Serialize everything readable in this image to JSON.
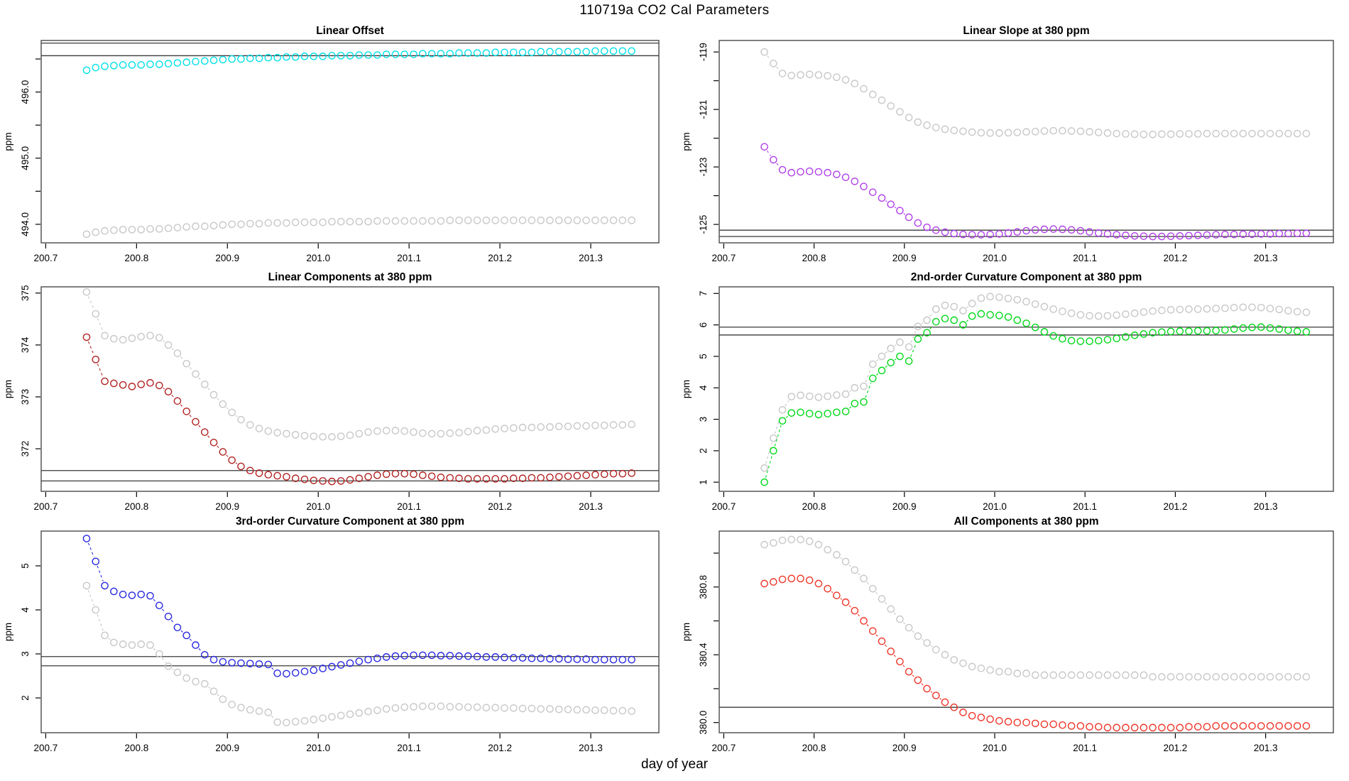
{
  "figure": {
    "title": "110719a   CO2 Cal Parameters",
    "xlabel": "day of year"
  },
  "x_axis": {
    "ticks": [
      200.7,
      200.8,
      200.9,
      201.0,
      201.1,
      201.2,
      201.3
    ],
    "tick_labels": [
      "200.7",
      "200.8",
      "200.9",
      "201.0",
      "201.1",
      "201.2",
      "201.3"
    ]
  },
  "chart_data": [
    {
      "type": "scatter",
      "title": "Linear Offset",
      "ylabel": "ppm",
      "xlim": [
        200.695,
        201.375
      ],
      "ylim": [
        493.72,
        496.78
      ],
      "yticks": [
        494.0,
        494.5,
        495.0,
        495.5,
        496.0,
        496.5
      ],
      "ytick_labels": [
        "494.0",
        "",
        "495.0",
        "",
        "496.0",
        ""
      ],
      "hlines": [
        496.74,
        496.55
      ],
      "series": [
        {
          "name": "offset-gray",
          "color": "#c7c7c7",
          "x_start": 200.745,
          "x_step": 0.01,
          "y": [
            493.85,
            493.88,
            493.9,
            493.91,
            493.92,
            493.92,
            493.92,
            493.93,
            493.93,
            493.94,
            493.95,
            493.96,
            493.97,
            493.97,
            493.98,
            493.99,
            494.0,
            494.0,
            494.01,
            494.01,
            494.02,
            494.02,
            494.02,
            494.03,
            494.03,
            494.03,
            494.03,
            494.04,
            494.04,
            494.04,
            494.04,
            494.04,
            494.05,
            494.05,
            494.05,
            494.05,
            494.05,
            494.05,
            494.05,
            494.05,
            494.06,
            494.06,
            494.06,
            494.06,
            494.06,
            494.06,
            494.06,
            494.06,
            494.06,
            494.06,
            494.06,
            494.06,
            494.06,
            494.06,
            494.06,
            494.06,
            494.06,
            494.06,
            494.06,
            494.06,
            494.06
          ]
        },
        {
          "name": "offset-cyan",
          "color": "#00dfe8",
          "x_start": 200.745,
          "x_step": 0.01,
          "y": [
            496.33,
            496.37,
            496.39,
            496.4,
            496.41,
            496.41,
            496.41,
            496.42,
            496.42,
            496.43,
            496.44,
            496.45,
            496.46,
            496.47,
            496.48,
            496.49,
            496.5,
            496.5,
            496.51,
            496.51,
            496.52,
            496.52,
            496.53,
            496.53,
            496.54,
            496.54,
            496.54,
            496.55,
            496.55,
            496.55,
            496.56,
            496.56,
            496.56,
            496.57,
            496.57,
            496.57,
            496.57,
            496.58,
            496.58,
            496.58,
            496.58,
            496.59,
            496.59,
            496.59,
            496.59,
            496.6,
            496.6,
            496.6,
            496.6,
            496.6,
            496.61,
            496.61,
            496.61,
            496.61,
            496.61,
            496.61,
            496.62,
            496.62,
            496.62,
            496.62,
            496.62
          ]
        }
      ]
    },
    {
      "type": "scatter",
      "title": "Linear Slope at 380 ppm",
      "ylabel": "ppm",
      "xlim": [
        200.695,
        201.375
      ],
      "ylim": [
        -125.64,
        -118.6
      ],
      "yticks": [
        -125,
        -124,
        -123,
        -122,
        -121,
        -120,
        -119
      ],
      "ytick_labels": [
        "-125",
        "",
        "-123",
        "",
        "-121",
        "",
        "-119"
      ],
      "hlines": [
        -125.2,
        -125.42
      ],
      "series": [
        {
          "name": "slope-gray",
          "color": "#c7c7c7",
          "x_start": 200.745,
          "x_step": 0.01,
          "y": [
            -119.0,
            -119.4,
            -119.75,
            -119.82,
            -119.8,
            -119.78,
            -119.8,
            -119.83,
            -119.88,
            -119.97,
            -120.1,
            -120.28,
            -120.48,
            -120.68,
            -120.88,
            -121.08,
            -121.28,
            -121.44,
            -121.55,
            -121.63,
            -121.69,
            -121.73,
            -121.76,
            -121.79,
            -121.81,
            -121.82,
            -121.82,
            -121.81,
            -121.8,
            -121.78,
            -121.77,
            -121.75,
            -121.74,
            -121.74,
            -121.75,
            -121.76,
            -121.78,
            -121.8,
            -121.82,
            -121.84,
            -121.85,
            -121.86,
            -121.87,
            -121.87,
            -121.86,
            -121.86,
            -121.85,
            -121.85,
            -121.85,
            -121.84,
            -121.84,
            -121.84,
            -121.84,
            -121.84,
            -121.84,
            -121.84,
            -121.84,
            -121.84,
            -121.84,
            -121.84,
            -121.84
          ]
        },
        {
          "name": "slope-purple",
          "color": "#b040e8",
          "x_start": 200.745,
          "x_step": 0.01,
          "y": [
            -122.3,
            -122.75,
            -123.1,
            -123.2,
            -123.17,
            -123.15,
            -123.17,
            -123.2,
            -123.26,
            -123.36,
            -123.5,
            -123.68,
            -123.88,
            -124.08,
            -124.3,
            -124.52,
            -124.75,
            -124.95,
            -125.1,
            -125.2,
            -125.27,
            -125.32,
            -125.35,
            -125.36,
            -125.36,
            -125.35,
            -125.33,
            -125.3,
            -125.26,
            -125.22,
            -125.19,
            -125.17,
            -125.16,
            -125.17,
            -125.19,
            -125.22,
            -125.26,
            -125.3,
            -125.33,
            -125.36,
            -125.38,
            -125.4,
            -125.41,
            -125.42,
            -125.42,
            -125.41,
            -125.4,
            -125.39,
            -125.38,
            -125.37,
            -125.36,
            -125.35,
            -125.35,
            -125.34,
            -125.34,
            -125.33,
            -125.33,
            -125.32,
            -125.32,
            -125.31,
            -125.31
          ]
        }
      ]
    },
    {
      "type": "scatter",
      "title": "Linear Components at 380 ppm",
      "ylabel": "ppm",
      "xlim": [
        200.695,
        201.375
      ],
      "ylim": [
        371.18,
        375.12
      ],
      "yticks": [
        372,
        373,
        374,
        375
      ],
      "ytick_labels": [
        "372",
        "373",
        "374",
        "375"
      ],
      "hlines": [
        371.58,
        371.38
      ],
      "series": [
        {
          "name": "lincomp-gray",
          "color": "#c7c7c7",
          "x_start": 200.745,
          "x_step": 0.01,
          "y": [
            375.02,
            374.6,
            374.18,
            374.12,
            374.1,
            374.13,
            374.16,
            374.18,
            374.14,
            374.0,
            373.84,
            373.64,
            373.44,
            373.24,
            373.04,
            372.86,
            372.7,
            372.56,
            372.46,
            372.39,
            372.34,
            372.31,
            372.29,
            372.27,
            372.25,
            372.24,
            372.23,
            372.23,
            372.24,
            372.26,
            372.29,
            372.32,
            372.34,
            372.35,
            372.35,
            372.34,
            372.32,
            372.3,
            372.29,
            372.29,
            372.3,
            372.31,
            372.33,
            372.35,
            372.36,
            372.38,
            372.39,
            372.4,
            372.41,
            372.41,
            372.42,
            372.42,
            372.43,
            372.43,
            372.44,
            372.44,
            372.45,
            372.45,
            372.46,
            372.46,
            372.47
          ]
        },
        {
          "name": "lincomp-darkred",
          "color": "#b22222",
          "x_start": 200.745,
          "x_step": 0.01,
          "y": [
            374.15,
            373.72,
            373.3,
            373.26,
            373.23,
            373.2,
            373.24,
            373.27,
            373.22,
            373.1,
            372.92,
            372.72,
            372.52,
            372.32,
            372.12,
            371.94,
            371.78,
            371.66,
            371.58,
            371.53,
            371.5,
            371.48,
            371.46,
            371.43,
            371.41,
            371.39,
            371.38,
            371.37,
            371.38,
            371.4,
            371.43,
            371.46,
            371.49,
            371.51,
            371.52,
            371.52,
            371.51,
            371.49,
            371.47,
            371.45,
            371.44,
            371.43,
            371.42,
            371.42,
            371.42,
            371.42,
            371.42,
            371.43,
            371.43,
            371.44,
            371.44,
            371.45,
            371.46,
            371.47,
            371.48,
            371.49,
            371.5,
            371.51,
            371.52,
            371.52,
            371.53
          ]
        }
      ]
    },
    {
      "type": "scatter",
      "title": "2nd-order Curvature Component at 380 ppm",
      "ylabel": "ppm",
      "xlim": [
        200.695,
        201.375
      ],
      "ylim": [
        0.71,
        7.21
      ],
      "yticks": [
        1,
        2,
        3,
        4,
        5,
        6,
        7
      ],
      "ytick_labels": [
        "1",
        "2",
        "3",
        "4",
        "5",
        "6",
        "7"
      ],
      "hlines": [
        5.93,
        5.68
      ],
      "series": [
        {
          "name": "curv2-gray",
          "color": "#c7c7c7",
          "x_start": 200.745,
          "x_step": 0.01,
          "y": [
            1.45,
            2.4,
            3.3,
            3.72,
            3.76,
            3.73,
            3.7,
            3.73,
            3.77,
            3.8,
            4.0,
            4.05,
            4.75,
            5.0,
            5.25,
            5.45,
            5.3,
            5.95,
            6.15,
            6.5,
            6.62,
            6.58,
            6.45,
            6.68,
            6.85,
            6.9,
            6.88,
            6.84,
            6.8,
            6.74,
            6.66,
            6.58,
            6.5,
            6.43,
            6.37,
            6.32,
            6.29,
            6.28,
            6.29,
            6.31,
            6.34,
            6.37,
            6.41,
            6.44,
            6.46,
            6.48,
            6.49,
            6.5,
            6.5,
            6.51,
            6.52,
            6.53,
            6.55,
            6.56,
            6.56,
            6.55,
            6.52,
            6.49,
            6.45,
            6.42,
            6.4
          ]
        },
        {
          "name": "curv2-green",
          "color": "#00d818",
          "x_start": 200.745,
          "x_step": 0.01,
          "y": [
            1.0,
            2.0,
            2.95,
            3.2,
            3.22,
            3.18,
            3.15,
            3.18,
            3.22,
            3.25,
            3.5,
            3.55,
            4.3,
            4.55,
            4.8,
            5.0,
            4.85,
            5.55,
            5.75,
            6.1,
            6.2,
            6.15,
            6.0,
            6.28,
            6.35,
            6.32,
            6.3,
            6.25,
            6.15,
            6.05,
            5.92,
            5.78,
            5.65,
            5.56,
            5.5,
            5.48,
            5.48,
            5.5,
            5.53,
            5.57,
            5.62,
            5.67,
            5.71,
            5.75,
            5.77,
            5.79,
            5.8,
            5.8,
            5.81,
            5.81,
            5.82,
            5.84,
            5.87,
            5.9,
            5.92,
            5.93,
            5.9,
            5.87,
            5.83,
            5.8,
            5.78
          ]
        }
      ]
    },
    {
      "type": "scatter",
      "title": "3rd-order Curvature Component at 380 ppm",
      "ylabel": "ppm",
      "xlim": [
        200.695,
        201.375
      ],
      "ylim": [
        1.21,
        5.79
      ],
      "yticks": [
        2,
        3,
        4,
        5
      ],
      "ytick_labels": [
        "2",
        "3",
        "4",
        "5"
      ],
      "hlines": [
        2.94,
        2.73
      ],
      "series": [
        {
          "name": "curv3-gray",
          "color": "#c7c7c7",
          "x_start": 200.745,
          "x_step": 0.01,
          "y": [
            4.55,
            4.0,
            3.42,
            3.26,
            3.22,
            3.2,
            3.22,
            3.2,
            3.0,
            2.72,
            2.58,
            2.45,
            2.37,
            2.32,
            2.15,
            1.97,
            1.85,
            1.78,
            1.73,
            1.7,
            1.67,
            1.45,
            1.44,
            1.46,
            1.48,
            1.51,
            1.54,
            1.57,
            1.6,
            1.63,
            1.66,
            1.69,
            1.72,
            1.75,
            1.77,
            1.79,
            1.8,
            1.81,
            1.81,
            1.81,
            1.8,
            1.8,
            1.79,
            1.79,
            1.78,
            1.78,
            1.77,
            1.77,
            1.76,
            1.76,
            1.75,
            1.75,
            1.74,
            1.74,
            1.73,
            1.73,
            1.72,
            1.72,
            1.71,
            1.71,
            1.7
          ]
        },
        {
          "name": "curv3-blue",
          "color": "#2828e0",
          "x_start": 200.745,
          "x_step": 0.01,
          "y": [
            5.62,
            5.1,
            4.55,
            4.42,
            4.35,
            4.33,
            4.35,
            4.32,
            4.1,
            3.85,
            3.6,
            3.42,
            3.2,
            2.98,
            2.87,
            2.82,
            2.8,
            2.79,
            2.78,
            2.77,
            2.76,
            2.56,
            2.55,
            2.57,
            2.6,
            2.63,
            2.67,
            2.71,
            2.75,
            2.79,
            2.83,
            2.87,
            2.9,
            2.93,
            2.95,
            2.96,
            2.97,
            2.97,
            2.97,
            2.96,
            2.96,
            2.95,
            2.95,
            2.94,
            2.93,
            2.93,
            2.92,
            2.91,
            2.91,
            2.9,
            2.9,
            2.89,
            2.89,
            2.88,
            2.88,
            2.88,
            2.87,
            2.87,
            2.87,
            2.87,
            2.87
          ]
        }
      ]
    },
    {
      "type": "scatter",
      "title": "All Components at 380 ppm",
      "ylabel": "ppm",
      "xlim": [
        200.695,
        201.375
      ],
      "ylim": [
        379.94,
        381.13
      ],
      "yticks": [
        380.0,
        380.2,
        380.4,
        380.6,
        380.8,
        381.0
      ],
      "ytick_labels": [
        "380.0",
        "",
        "380.4",
        "",
        "380.8",
        ""
      ],
      "hlines": [
        380.09
      ],
      "series": [
        {
          "name": "allcomp-gray",
          "color": "#c7c7c7",
          "x_start": 200.745,
          "x_step": 0.01,
          "y": [
            381.05,
            381.06,
            381.075,
            381.08,
            381.08,
            381.07,
            381.05,
            381.02,
            380.99,
            380.95,
            380.9,
            380.85,
            380.79,
            380.73,
            380.67,
            380.61,
            380.56,
            380.51,
            380.47,
            380.43,
            380.4,
            380.37,
            380.35,
            380.33,
            380.32,
            380.31,
            380.3,
            380.3,
            380.29,
            380.29,
            380.28,
            380.28,
            380.28,
            380.28,
            380.28,
            380.28,
            380.28,
            380.28,
            380.28,
            380.28,
            380.28,
            380.28,
            380.28,
            380.27,
            380.27,
            380.27,
            380.27,
            380.27,
            380.27,
            380.27,
            380.27,
            380.27,
            380.27,
            380.27,
            380.27,
            380.27,
            380.27,
            380.27,
            380.27,
            380.27,
            380.27
          ]
        },
        {
          "name": "allcomp-red",
          "color": "#ee3528",
          "x_start": 200.745,
          "x_step": 0.01,
          "y": [
            380.82,
            380.83,
            380.845,
            380.85,
            380.85,
            380.84,
            380.82,
            380.79,
            380.75,
            380.71,
            380.66,
            380.6,
            380.54,
            380.48,
            380.42,
            380.36,
            380.3,
            380.25,
            380.2,
            380.16,
            380.12,
            380.09,
            380.06,
            380.04,
            380.03,
            380.02,
            380.01,
            380.005,
            380.0,
            380.0,
            379.995,
            379.99,
            379.99,
            379.985,
            379.98,
            379.98,
            379.975,
            379.975,
            379.97,
            379.97,
            379.97,
            379.97,
            379.97,
            379.97,
            379.97,
            379.97,
            379.97,
            379.975,
            379.975,
            379.975,
            379.98,
            379.98,
            379.98,
            379.98,
            379.98,
            379.98,
            379.98,
            379.98,
            379.98,
            379.98,
            379.98
          ]
        }
      ]
    }
  ]
}
